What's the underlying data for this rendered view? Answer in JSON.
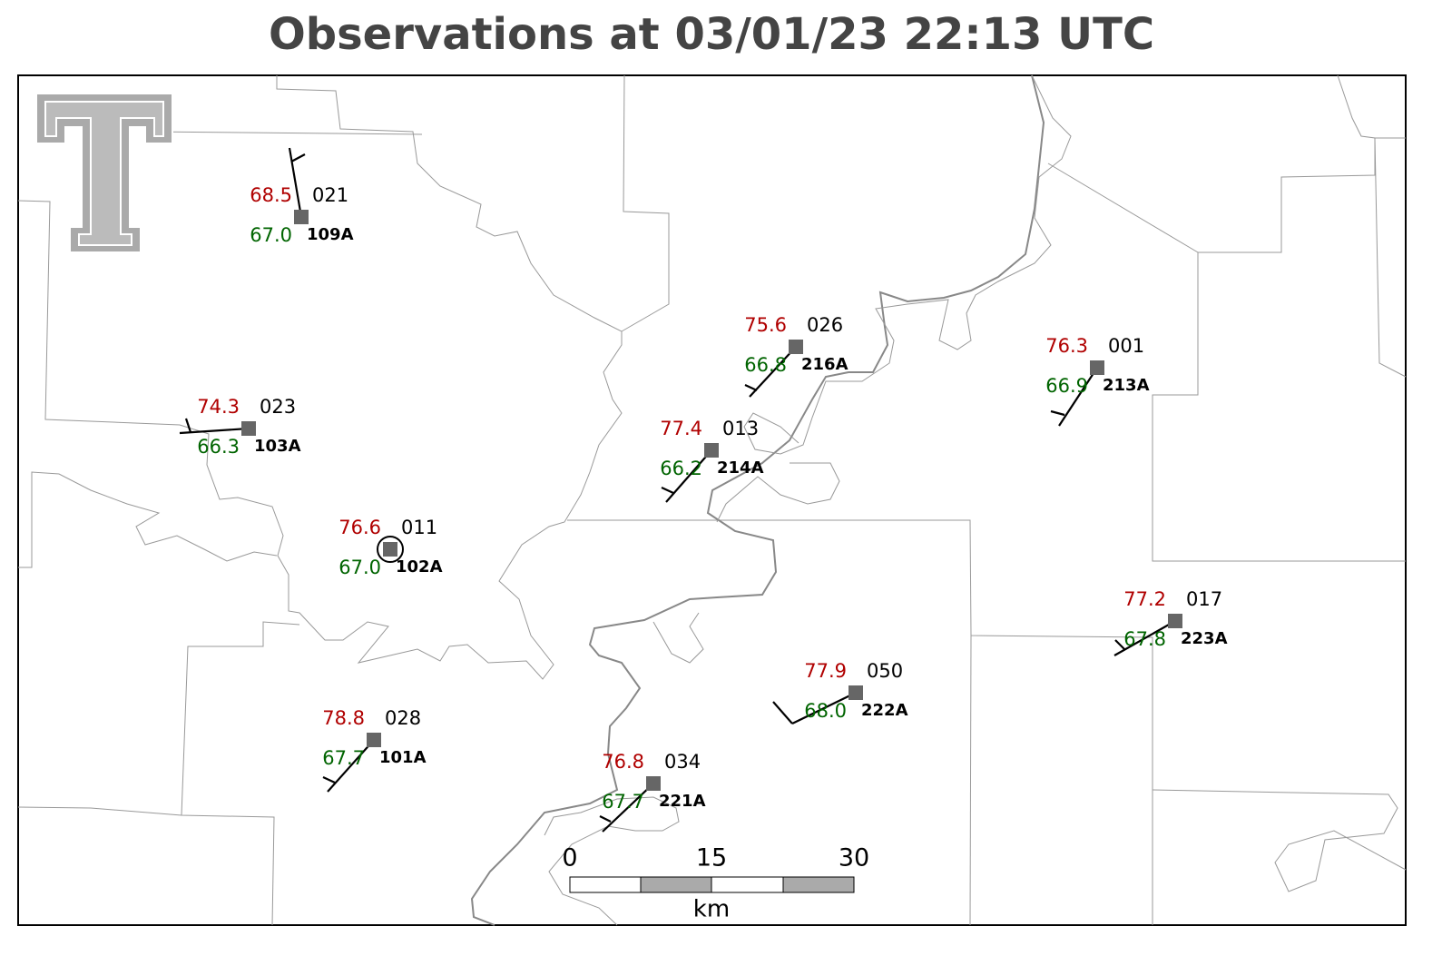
{
  "title": "Observations at 03/01/23 22:13 UTC",
  "stations": [
    {
      "temperature": "68.5",
      "dewpoint": "67.0",
      "pressure": "021",
      "id": "109A"
    },
    {
      "temperature": "74.3",
      "dewpoint": "66.3",
      "pressure": "023",
      "id": "103A"
    },
    {
      "temperature": "76.6",
      "dewpoint": "67.0",
      "pressure": "011",
      "id": "102A"
    },
    {
      "temperature": "75.6",
      "dewpoint": "66.8",
      "pressure": "026",
      "id": "216A"
    },
    {
      "temperature": "77.4",
      "dewpoint": "66.2",
      "pressure": "013",
      "id": "214A"
    },
    {
      "temperature": "76.3",
      "dewpoint": "66.9",
      "pressure": "001",
      "id": "213A"
    },
    {
      "temperature": "77.2",
      "dewpoint": "67.8",
      "pressure": "017",
      "id": "223A"
    },
    {
      "temperature": "77.9",
      "dewpoint": "68.0",
      "pressure": "050",
      "id": "222A"
    },
    {
      "temperature": "78.8",
      "dewpoint": "67.7",
      "pressure": "028",
      "id": "101A"
    },
    {
      "temperature": "76.8",
      "dewpoint": "67.7",
      "pressure": "034",
      "id": "221A"
    }
  ],
  "scale_bar": {
    "labels": [
      0,
      15,
      30
    ],
    "unit": "km"
  }
}
